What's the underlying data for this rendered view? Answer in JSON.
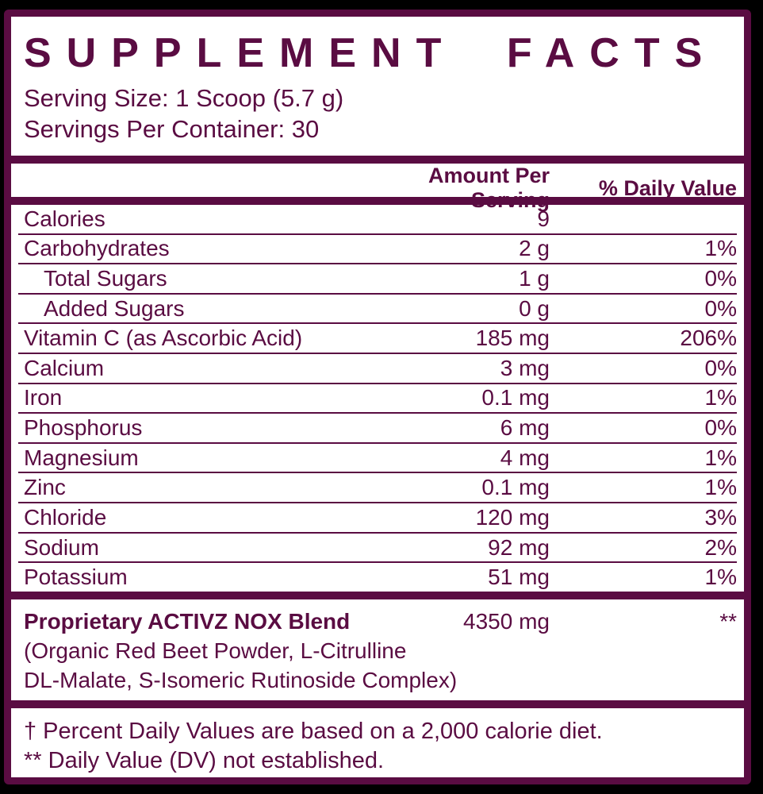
{
  "title": "SUPPLEMENT FACTS",
  "serving": {
    "size": "Serving Size: 1 Scoop (5.7 g)",
    "per_container": "Servings Per Container: 30"
  },
  "table": {
    "amount_header": "Amount Per Serving",
    "dv_header": "% Daily Value",
    "rows": [
      {
        "name": "Calories",
        "amount": "9",
        "dv": ""
      },
      {
        "name": "Carbohydrates",
        "amount": "2 g",
        "dv": "1%"
      },
      {
        "name": "Total Sugars",
        "amount": "1 g",
        "dv": "0%"
      },
      {
        "name": "Added Sugars",
        "amount": "0 g",
        "dv": "0%"
      },
      {
        "name": "Vitamin C (as Ascorbic Acid)",
        "amount": "185 mg",
        "dv": "206%"
      },
      {
        "name": "Calcium",
        "amount": "3 mg",
        "dv": "0%"
      },
      {
        "name": "Iron",
        "amount": "0.1 mg",
        "dv": "1%"
      },
      {
        "name": "Phosphorus",
        "amount": "6 mg",
        "dv": "0%"
      },
      {
        "name": "Magnesium",
        "amount": "4 mg",
        "dv": "1%"
      },
      {
        "name": "Zinc",
        "amount": "0.1 mg",
        "dv": "1%"
      },
      {
        "name": "Chloride",
        "amount": "120 mg",
        "dv": "3%"
      },
      {
        "name": "Sodium",
        "amount": "92 mg",
        "dv": "2%"
      },
      {
        "name": "Potassium",
        "amount": "51 mg",
        "dv": "1%"
      }
    ]
  },
  "blend": {
    "name": "Proprietary ACTIVZ NOX Blend",
    "amount": "4350 mg",
    "dv": "**",
    "ingredients_line1": "(Organic Red Beet Powder, L-Citrulline",
    "ingredients_line2": "DL-Malate, S-Isomeric Rutinoside Complex)"
  },
  "footnotes": {
    "daily_values": "† Percent Daily Values are based on a 2,000 calorie diet.",
    "not_established": "** Daily Value (DV) not established."
  },
  "colors": {
    "maroon": "#5A0C42",
    "panel_bg": "#FFFFFF",
    "page_bg": "#000000"
  }
}
